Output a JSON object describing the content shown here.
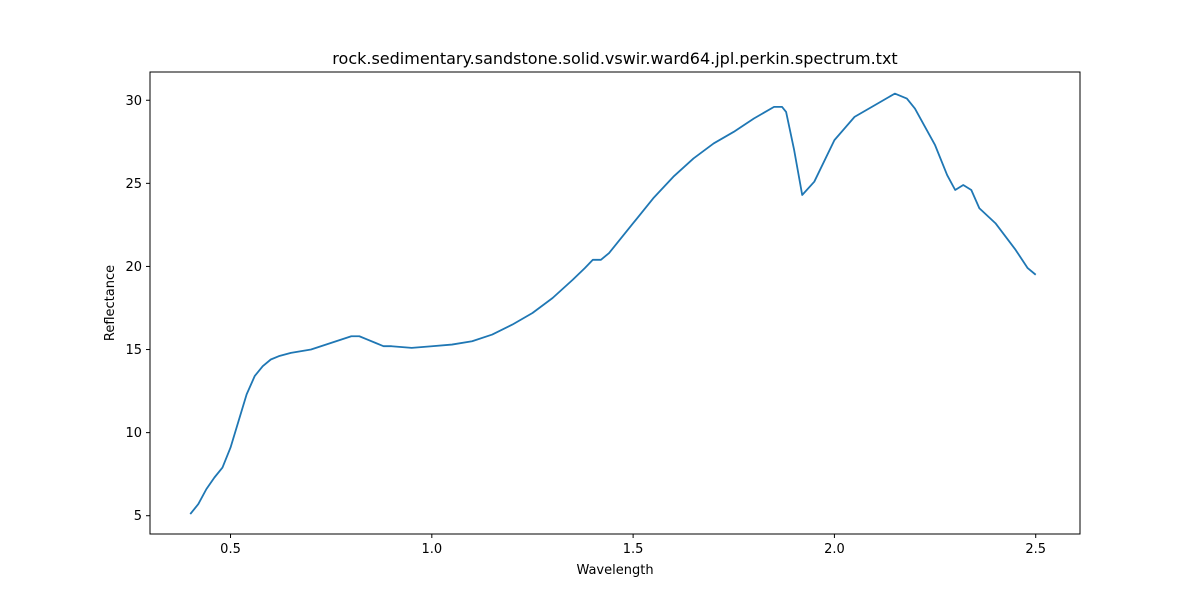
{
  "chart_data": {
    "type": "line",
    "title": "rock.sedimentary.sandstone.solid.vswir.ward64.jpl.perkin.spectrum.txt",
    "xlabel": "Wavelength",
    "ylabel": "Reflectance",
    "xlim": [
      0.3,
      2.61
    ],
    "ylim": [
      3.9,
      31.7
    ],
    "xticks": [
      0.5,
      1.0,
      1.5,
      2.0,
      2.5
    ],
    "xtick_labels": [
      "0.5",
      "1.0",
      "1.5",
      "2.0",
      "2.5"
    ],
    "yticks": [
      5,
      10,
      15,
      20,
      25,
      30
    ],
    "ytick_labels": [
      "5",
      "10",
      "15",
      "20",
      "25",
      "30"
    ],
    "grid": false,
    "line_color": "#1f77b4",
    "series": [
      {
        "x": [
          0.4,
          0.42,
          0.44,
          0.46,
          0.48,
          0.5,
          0.52,
          0.54,
          0.56,
          0.58,
          0.6,
          0.62,
          0.65,
          0.7,
          0.75,
          0.8,
          0.82,
          0.84,
          0.86,
          0.88,
          0.9,
          0.95,
          1.0,
          1.05,
          1.1,
          1.15,
          1.2,
          1.25,
          1.3,
          1.35,
          1.38,
          1.4,
          1.42,
          1.44,
          1.5,
          1.55,
          1.6,
          1.65,
          1.7,
          1.75,
          1.8,
          1.85,
          1.87,
          1.88,
          1.9,
          1.92,
          1.95,
          2.0,
          2.05,
          2.1,
          2.15,
          2.18,
          2.2,
          2.25,
          2.28,
          2.3,
          2.32,
          2.34,
          2.36,
          2.4,
          2.45,
          2.48,
          2.5
        ],
        "y": [
          5.1,
          5.7,
          6.6,
          7.3,
          7.9,
          9.1,
          10.7,
          12.3,
          13.4,
          14.0,
          14.4,
          14.6,
          14.8,
          15.0,
          15.4,
          15.8,
          15.8,
          15.6,
          15.4,
          15.2,
          15.2,
          15.1,
          15.2,
          15.3,
          15.5,
          15.9,
          16.5,
          17.2,
          18.1,
          19.2,
          19.9,
          20.4,
          20.4,
          20.8,
          22.6,
          24.1,
          25.4,
          26.5,
          27.4,
          28.1,
          28.9,
          29.6,
          29.6,
          29.3,
          27.0,
          24.3,
          25.1,
          27.6,
          29.0,
          29.7,
          30.4,
          30.1,
          29.5,
          27.3,
          25.5,
          24.6,
          24.9,
          24.6,
          23.5,
          22.6,
          21.0,
          19.9,
          19.5
        ]
      }
    ]
  }
}
